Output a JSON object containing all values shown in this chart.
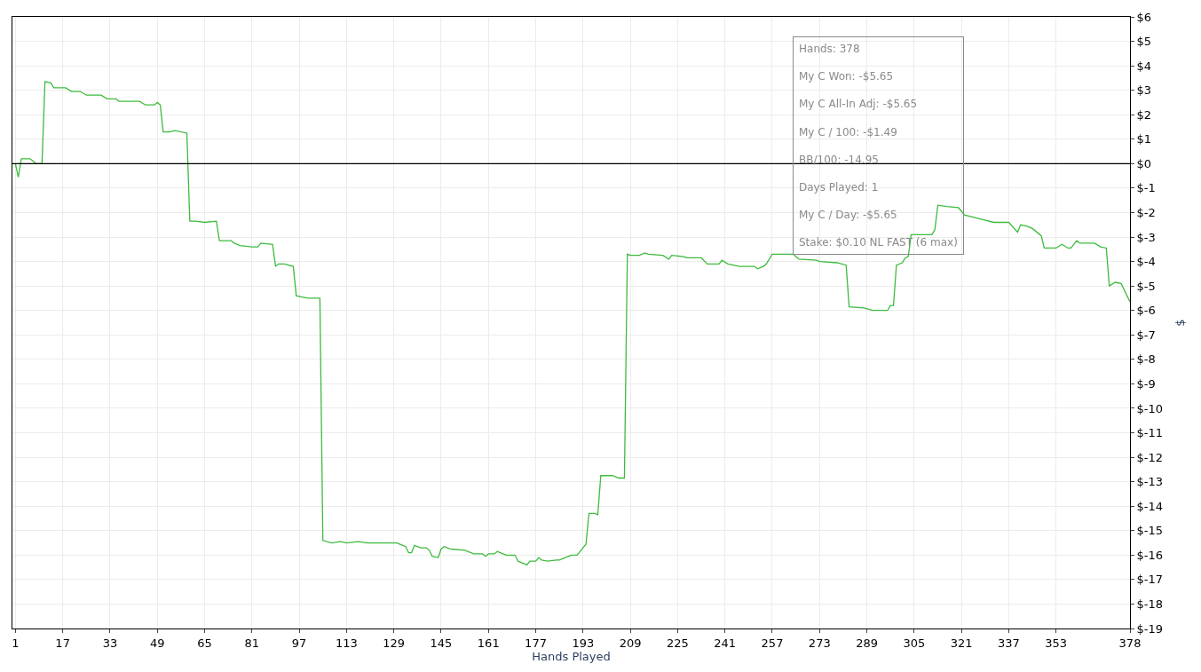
{
  "chart_data": {
    "type": "line",
    "xlabel": "Hands Played",
    "ylabel": "$",
    "series": [
      {
        "color": "#3dbb3d",
        "x": [
          1,
          2,
          3,
          6,
          8,
          10,
          11,
          13,
          14,
          18,
          20,
          23,
          25,
          30,
          32,
          35,
          36,
          43,
          45,
          48,
          49,
          50,
          51,
          53,
          55,
          59,
          60,
          62,
          65,
          69,
          70,
          74,
          75,
          77,
          81,
          83,
          84,
          88,
          89,
          90,
          92,
          95,
          96,
          98,
          100,
          104,
          105,
          108,
          111,
          113,
          117,
          120,
          123,
          130,
          132,
          133,
          134,
          135,
          136,
          138,
          140,
          141,
          142,
          144,
          145,
          146,
          148,
          153,
          156,
          159,
          160,
          161,
          163,
          164,
          165,
          167,
          170,
          171,
          173,
          174,
          175,
          177,
          178,
          179,
          181,
          184,
          185,
          187,
          189,
          191,
          193,
          194,
          195,
          197,
          198,
          199,
          203,
          205,
          207,
          208,
          209,
          212,
          214,
          215,
          220,
          222,
          223,
          227,
          228,
          233,
          235,
          239,
          240,
          242,
          246,
          251,
          252,
          254,
          255,
          257,
          259,
          264,
          266,
          272,
          273,
          279,
          282,
          283,
          288,
          291,
          296,
          297,
          298,
          299,
          301,
          302,
          303,
          304,
          307,
          311,
          312,
          313,
          316,
          320,
          322,
          327,
          332,
          337,
          340,
          341,
          343,
          345,
          348,
          349,
          353,
          355,
          357,
          358,
          360,
          361,
          366,
          368,
          370,
          371,
          373,
          375,
          378
        ],
        "values": [
          0,
          -0.55,
          0.2,
          0.2,
          0.0,
          0.0,
          3.35,
          3.3,
          3.1,
          3.1,
          2.95,
          2.95,
          2.8,
          2.8,
          2.65,
          2.65,
          2.55,
          2.55,
          2.4,
          2.4,
          2.5,
          2.4,
          1.3,
          1.3,
          1.35,
          1.25,
          -2.35,
          -2.35,
          -2.4,
          -2.35,
          -3.15,
          -3.15,
          -3.25,
          -3.35,
          -3.4,
          -3.4,
          -3.25,
          -3.3,
          -4.2,
          -4.1,
          -4.1,
          -4.2,
          -5.4,
          -5.45,
          -5.5,
          -5.5,
          -15.4,
          -15.5,
          -15.45,
          -15.5,
          -15.45,
          -15.5,
          -15.5,
          -15.5,
          -15.6,
          -15.65,
          -15.9,
          -15.9,
          -15.6,
          -15.7,
          -15.7,
          -15.8,
          -16.05,
          -16.1,
          -15.75,
          -15.65,
          -15.75,
          -15.8,
          -15.95,
          -15.95,
          -16.05,
          -15.95,
          -15.95,
          -15.85,
          -15.9,
          -16.0,
          -16.0,
          -16.25,
          -16.35,
          -16.4,
          -16.25,
          -16.25,
          -16.1,
          -16.2,
          -16.25,
          -16.2,
          -16.2,
          -16.1,
          -16.0,
          -16.0,
          -15.7,
          -15.55,
          -14.3,
          -14.3,
          -14.35,
          -12.75,
          -12.75,
          -12.85,
          -12.85,
          -3.7,
          -3.75,
          -3.75,
          -3.65,
          -3.7,
          -3.75,
          -3.9,
          -3.75,
          -3.8,
          -3.85,
          -3.85,
          -4.1,
          -4.1,
          -3.95,
          -4.1,
          -4.2,
          -4.2,
          -4.3,
          -4.2,
          -4.1,
          -3.7,
          -3.7,
          -3.7,
          -3.9,
          -3.95,
          -4.0,
          -4.05,
          -4.15,
          -5.85,
          -5.9,
          -6.0,
          -6.0,
          -5.8,
          -5.8,
          -4.15,
          -4.05,
          -3.85,
          -3.8,
          -2.9,
          -2.9,
          -2.9,
          -2.7,
          -1.7,
          -1.75,
          -1.8,
          -2.1,
          -2.25,
          -2.4,
          -2.4,
          -2.8,
          -2.5,
          -2.55,
          -2.65,
          -2.95,
          -3.45,
          -3.45,
          -3.3,
          -3.45,
          -3.45,
          -3.15,
          -3.25,
          -3.25,
          -3.4,
          -3.45,
          -5.0,
          -4.85,
          -4.9,
          -5.65
        ]
      }
    ],
    "xlim": [
      0,
      378
    ],
    "xticks": [
      1,
      17,
      33,
      49,
      65,
      81,
      97,
      113,
      129,
      145,
      161,
      177,
      193,
      209,
      225,
      241,
      257,
      273,
      289,
      305,
      321,
      337,
      353,
      378
    ],
    "ylim": [
      -19,
      6
    ],
    "yticks": [
      {
        "value": 6,
        "label": "$6"
      },
      {
        "value": 5,
        "label": "$5"
      },
      {
        "value": 4,
        "label": "$4"
      },
      {
        "value": 3,
        "label": "$3"
      },
      {
        "value": 2,
        "label": "$2"
      },
      {
        "value": 1,
        "label": "$1"
      },
      {
        "value": 0,
        "label": "$0"
      },
      {
        "value": -1,
        "label": "$-1"
      },
      {
        "value": -2,
        "label": "$-2"
      },
      {
        "value": -3,
        "label": "$-3"
      },
      {
        "value": -4,
        "label": "$-4"
      },
      {
        "value": -5,
        "label": "$-5"
      },
      {
        "value": -6,
        "label": "$-6"
      },
      {
        "value": -7,
        "label": "$-7"
      },
      {
        "value": -8,
        "label": "$-8"
      },
      {
        "value": -9,
        "label": "$-9"
      },
      {
        "value": -10,
        "label": "$-10"
      },
      {
        "value": -11,
        "label": "$-11"
      },
      {
        "value": -12,
        "label": "$-12"
      },
      {
        "value": -13,
        "label": "$-13"
      },
      {
        "value": -14,
        "label": "$-14"
      },
      {
        "value": -15,
        "label": "$-15"
      },
      {
        "value": -16,
        "label": "$-16"
      },
      {
        "value": -17,
        "label": "$-17"
      },
      {
        "value": -18,
        "label": "$-18"
      },
      {
        "value": -19,
        "label": "$-19"
      }
    ],
    "ref_lines": [
      {
        "axis": "y",
        "value": 0,
        "color": "#000000"
      }
    ],
    "annotations": [
      "Hands: 378",
      "My C Won: -$5.65",
      "My C All-In Adj: -$5.65",
      "My C / 100: -$1.49",
      "BB/100: -14.95",
      "Days Played: 1",
      "My C / Day: -$5.65",
      "Stake: $0.10 NL FAST (6 max)"
    ],
    "grid": true,
    "marker": "none",
    "line_style": "solid"
  }
}
